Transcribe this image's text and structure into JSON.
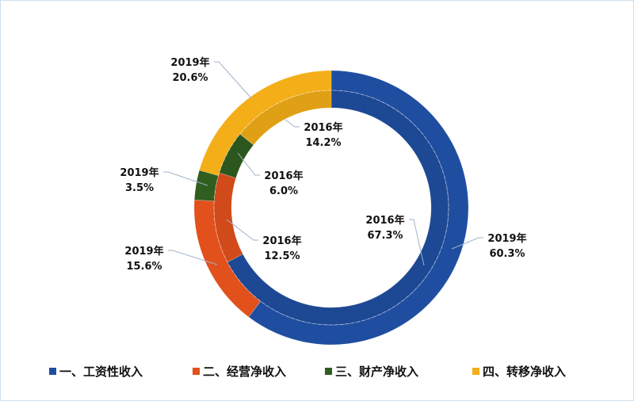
{
  "chart_data": {
    "type": "donut",
    "title": "",
    "categories": [
      "一、工资性收入",
      "二、经营净收入",
      "三、财产净收入",
      "四、转移净收入"
    ],
    "colors": [
      "#1f4ea0",
      "#e2501c",
      "#2f5e1f",
      "#f4ae17"
    ],
    "series": [
      {
        "name": "2019年",
        "ring": "outer",
        "values": [
          60.3,
          15.6,
          3.5,
          20.6
        ],
        "labels": [
          "2019年\n60.3%",
          "2019年\n15.6%",
          "2019年\n3.5%",
          "2019年\n20.6%"
        ]
      },
      {
        "name": "2016年",
        "ring": "inner",
        "values": [
          67.3,
          12.5,
          6.0,
          14.2
        ],
        "labels": [
          "2016年\n67.3%",
          "2016年\n12.5%",
          "2016年\n6.0%",
          "2016年\n14.2%"
        ]
      }
    ],
    "legend_position": "bottom"
  }
}
